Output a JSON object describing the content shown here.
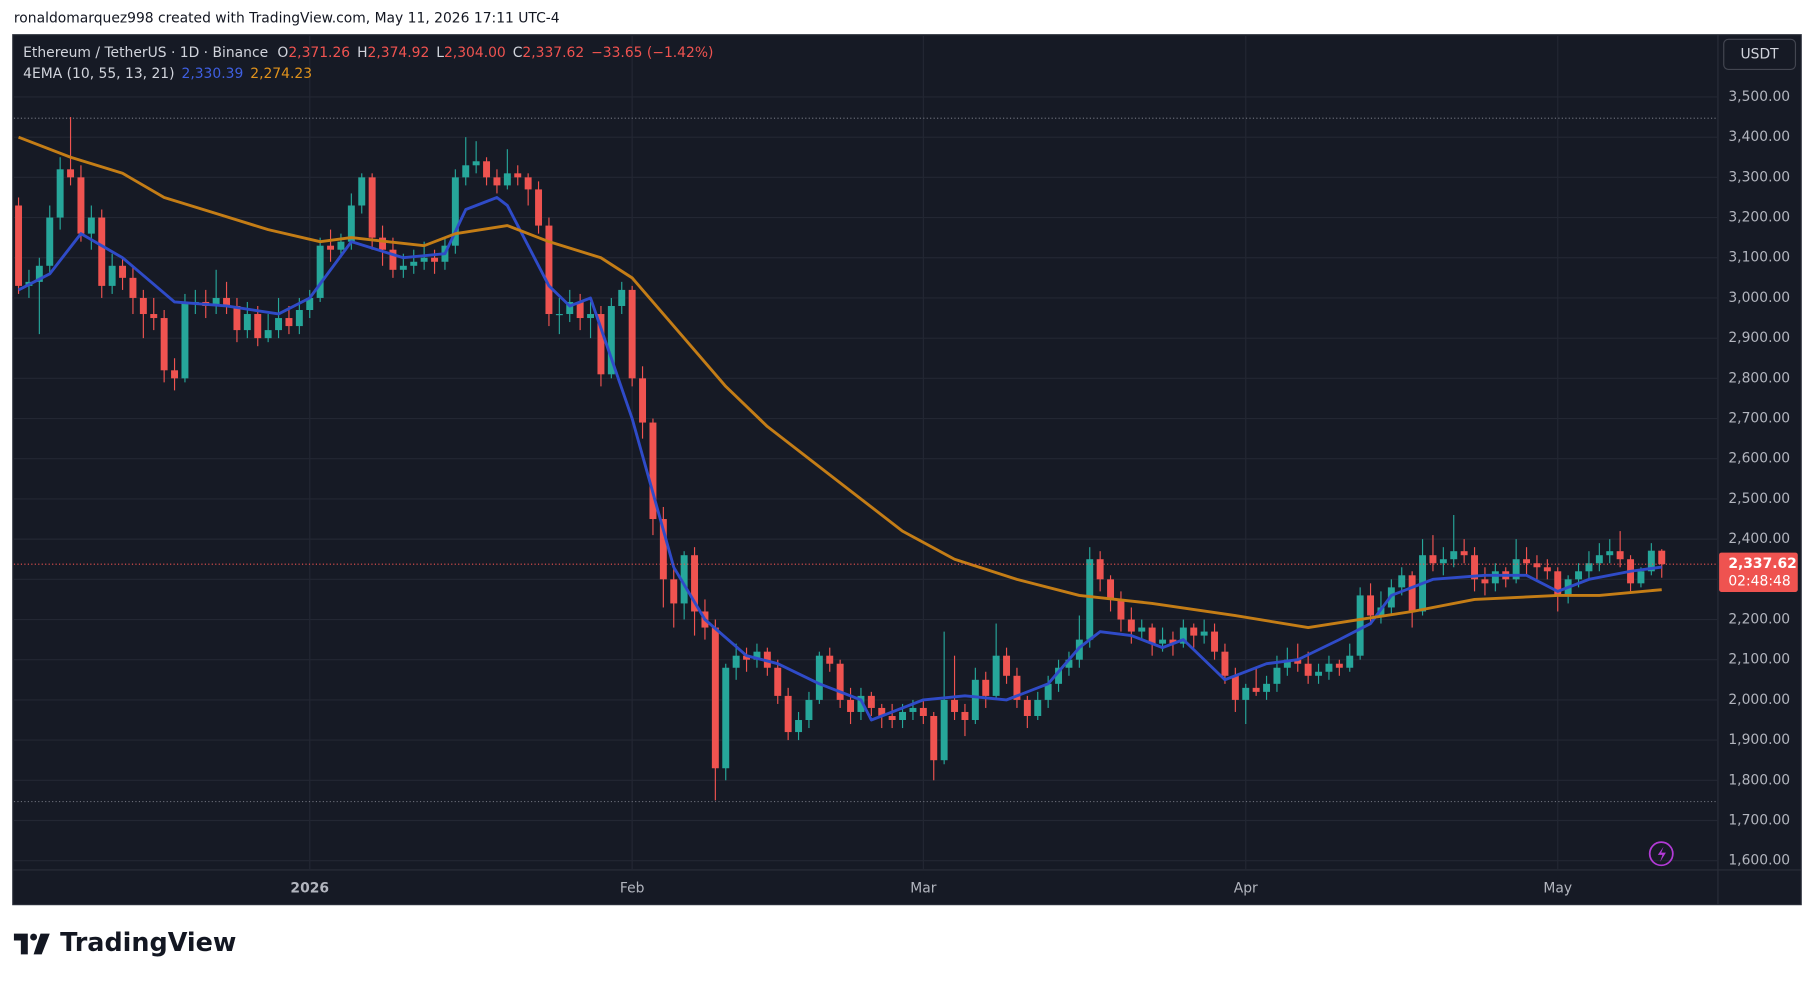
{
  "header": {
    "credit": "ronaldomarquez998 created with TradingView.com, May 11, 2026 17:11 UTC-4"
  },
  "footer": {
    "brand": "TradingView"
  },
  "chart_data": {
    "type": "candlestick",
    "symbol": "Ethereum / TetherUS · 1D · Binance",
    "ohlc_legend": [
      {
        "key": "O",
        "label": "2,371.26"
      },
      {
        "key": "H",
        "label": "2,374.92"
      },
      {
        "key": "L",
        "label": "2,304.00"
      },
      {
        "key": "C",
        "label": "2,337.62"
      }
    ],
    "change": "−33.65 (−1.42%)",
    "indicator": "4EMA (10, 55, 13, 21)",
    "indicator_values": [
      "2,330.39",
      "2,274.23"
    ],
    "currency": "USDT",
    "last_price_label": "2,337.62",
    "countdown": "02:48:48",
    "up_color": "#26a69a",
    "down_color": "#ef5350",
    "ylim": [
      1577,
      3652
    ],
    "yticks": [
      {
        "value": 1600,
        "label": "1,600.00"
      },
      {
        "value": 1700,
        "label": "1,700.00"
      },
      {
        "value": 1800,
        "label": "1,800.00"
      },
      {
        "value": 1900,
        "label": "1,900.00"
      },
      {
        "value": 2000,
        "label": "2,000.00"
      },
      {
        "value": 2100,
        "label": "2,100.00"
      },
      {
        "value": 2200,
        "label": "2,200.00"
      },
      {
        "value": 2300,
        "label": "2,300.00"
      },
      {
        "value": 2400,
        "label": "2,400.00"
      },
      {
        "value": 2500,
        "label": "2,500.00"
      },
      {
        "value": 2600,
        "label": "2,600.00"
      },
      {
        "value": 2700,
        "label": "2,700.00"
      },
      {
        "value": 2800,
        "label": "2,800.00"
      },
      {
        "value": 2900,
        "label": "2,900.00"
      },
      {
        "value": 3000,
        "label": "3,000.00"
      },
      {
        "value": 3100,
        "label": "3,100.00"
      },
      {
        "value": 3200,
        "label": "3,200.00"
      },
      {
        "value": 3300,
        "label": "3,300.00"
      },
      {
        "value": 3400,
        "label": "3,400.00"
      },
      {
        "value": 3500,
        "label": "3,500.00"
      }
    ],
    "xticks": [
      {
        "value": 28,
        "label": "2026"
      },
      {
        "value": 59,
        "label": "Feb"
      },
      {
        "value": 87,
        "label": "Mar"
      },
      {
        "value": 118,
        "label": "Apr"
      },
      {
        "value": 148,
        "label": "May"
      }
    ],
    "grid": true,
    "hl_lines": [
      3447,
      1747
    ],
    "ohlc": [
      [
        3230,
        3250,
        3010,
        3030
      ],
      [
        3030,
        3070,
        3000,
        3040
      ],
      [
        3040,
        3100,
        2910,
        3080
      ],
      [
        3080,
        3230,
        3060,
        3200
      ],
      [
        3200,
        3350,
        3170,
        3320
      ],
      [
        3320,
        3450,
        3280,
        3300
      ],
      [
        3300,
        3330,
        3140,
        3160
      ],
      [
        3160,
        3230,
        3120,
        3200
      ],
      [
        3200,
        3220,
        3000,
        3030
      ],
      [
        3030,
        3110,
        3010,
        3080
      ],
      [
        3080,
        3100,
        3020,
        3050
      ],
      [
        3050,
        3080,
        2960,
        3000
      ],
      [
        3000,
        3020,
        2900,
        2960
      ],
      [
        2960,
        3000,
        2920,
        2950
      ],
      [
        2950,
        2970,
        2790,
        2820
      ],
      [
        2820,
        2850,
        2770,
        2800
      ],
      [
        2800,
        3010,
        2790,
        2990
      ],
      [
        2990,
        3020,
        2960,
        2990
      ],
      [
        2990,
        3020,
        2950,
        2980
      ],
      [
        2980,
        3070,
        2960,
        3000
      ],
      [
        3000,
        3040,
        2960,
        2980
      ],
      [
        2980,
        3000,
        2890,
        2920
      ],
      [
        2920,
        2990,
        2900,
        2960
      ],
      [
        2960,
        2980,
        2880,
        2900
      ],
      [
        2900,
        2960,
        2890,
        2920
      ],
      [
        2920,
        3000,
        2900,
        2950
      ],
      [
        2950,
        2980,
        2910,
        2930
      ],
      [
        2930,
        3000,
        2910,
        2970
      ],
      [
        2970,
        3020,
        2950,
        3000
      ],
      [
        3000,
        3150,
        2990,
        3130
      ],
      [
        3130,
        3170,
        3090,
        3120
      ],
      [
        3120,
        3160,
        3100,
        3140
      ],
      [
        3140,
        3260,
        3120,
        3230
      ],
      [
        3230,
        3310,
        3210,
        3300
      ],
      [
        3300,
        3310,
        3120,
        3150
      ],
      [
        3150,
        3180,
        3080,
        3120
      ],
      [
        3120,
        3150,
        3050,
        3070
      ],
      [
        3070,
        3110,
        3050,
        3080
      ],
      [
        3080,
        3120,
        3060,
        3090
      ],
      [
        3090,
        3140,
        3070,
        3100
      ],
      [
        3100,
        3120,
        3060,
        3090
      ],
      [
        3090,
        3150,
        3070,
        3130
      ],
      [
        3130,
        3320,
        3110,
        3300
      ],
      [
        3300,
        3400,
        3280,
        3330
      ],
      [
        3330,
        3390,
        3310,
        3340
      ],
      [
        3340,
        3350,
        3280,
        3300
      ],
      [
        3300,
        3320,
        3260,
        3280
      ],
      [
        3280,
        3370,
        3270,
        3310
      ],
      [
        3310,
        3330,
        3280,
        3300
      ],
      [
        3300,
        3310,
        3230,
        3270
      ],
      [
        3270,
        3290,
        3160,
        3180
      ],
      [
        3180,
        3200,
        2930,
        2960
      ],
      [
        2960,
        3000,
        2910,
        2960
      ],
      [
        2960,
        3020,
        2940,
        2990
      ],
      [
        2990,
        3010,
        2920,
        2950
      ],
      [
        2950,
        2990,
        2900,
        2960
      ],
      [
        2960,
        2980,
        2780,
        2810
      ],
      [
        2810,
        3000,
        2800,
        2980
      ],
      [
        2980,
        3040,
        2960,
        3020
      ],
      [
        3020,
        3030,
        2780,
        2800
      ],
      [
        2800,
        2830,
        2650,
        2690
      ],
      [
        2690,
        2700,
        2410,
        2450
      ],
      [
        2450,
        2480,
        2230,
        2300
      ],
      [
        2300,
        2330,
        2180,
        2240
      ],
      [
        2240,
        2370,
        2200,
        2360
      ],
      [
        2360,
        2380,
        2160,
        2220
      ],
      [
        2220,
        2250,
        2150,
        2180
      ],
      [
        2180,
        2200,
        1750,
        1830
      ],
      [
        1830,
        2090,
        1800,
        2080
      ],
      [
        2080,
        2140,
        2050,
        2110
      ],
      [
        2110,
        2130,
        2070,
        2100
      ],
      [
        2100,
        2140,
        2080,
        2120
      ],
      [
        2120,
        2130,
        2060,
        2080
      ],
      [
        2080,
        2100,
        1990,
        2010
      ],
      [
        2010,
        2030,
        1900,
        1920
      ],
      [
        1920,
        1970,
        1900,
        1950
      ],
      [
        1950,
        2020,
        1930,
        2000
      ],
      [
        2000,
        2120,
        1990,
        2110
      ],
      [
        2110,
        2130,
        2070,
        2090
      ],
      [
        2090,
        2100,
        1980,
        2000
      ],
      [
        2000,
        2030,
        1940,
        1970
      ],
      [
        1970,
        2030,
        1950,
        2010
      ],
      [
        2010,
        2020,
        1960,
        1980
      ],
      [
        1980,
        1990,
        1930,
        1960
      ],
      [
        1960,
        1990,
        1930,
        1950
      ],
      [
        1950,
        1990,
        1930,
        1970
      ],
      [
        1970,
        2000,
        1950,
        1980
      ],
      [
        1980,
        2000,
        1940,
        1960
      ],
      [
        1960,
        1970,
        1800,
        1850
      ],
      [
        1850,
        2170,
        1840,
        2000
      ],
      [
        2000,
        2110,
        1950,
        1970
      ],
      [
        1970,
        1990,
        1910,
        1950
      ],
      [
        1950,
        2080,
        1940,
        2050
      ],
      [
        2050,
        2070,
        1980,
        2010
      ],
      [
        2010,
        2190,
        2000,
        2110
      ],
      [
        2110,
        2130,
        2040,
        2060
      ],
      [
        2060,
        2080,
        1980,
        2000
      ],
      [
        2000,
        2010,
        1930,
        1960
      ],
      [
        1960,
        2020,
        1950,
        2000
      ],
      [
        2000,
        2060,
        1980,
        2040
      ],
      [
        2040,
        2100,
        2020,
        2080
      ],
      [
        2080,
        2120,
        2060,
        2100
      ],
      [
        2100,
        2210,
        2080,
        2150
      ],
      [
        2150,
        2380,
        2130,
        2350
      ],
      [
        2350,
        2370,
        2270,
        2300
      ],
      [
        2300,
        2310,
        2220,
        2250
      ],
      [
        2250,
        2270,
        2170,
        2200
      ],
      [
        2200,
        2230,
        2140,
        2170
      ],
      [
        2170,
        2200,
        2150,
        2180
      ],
      [
        2180,
        2190,
        2110,
        2140
      ],
      [
        2140,
        2180,
        2120,
        2150
      ],
      [
        2150,
        2170,
        2110,
        2140
      ],
      [
        2140,
        2200,
        2130,
        2180
      ],
      [
        2180,
        2190,
        2130,
        2160
      ],
      [
        2160,
        2200,
        2140,
        2170
      ],
      [
        2170,
        2190,
        2100,
        2120
      ],
      [
        2120,
        2140,
        2040,
        2060
      ],
      [
        2060,
        2080,
        1970,
        2000
      ],
      [
        2000,
        2040,
        1940,
        2030
      ],
      [
        2030,
        2080,
        2010,
        2020
      ],
      [
        2020,
        2060,
        2000,
        2040
      ],
      [
        2040,
        2110,
        2020,
        2080
      ],
      [
        2080,
        2130,
        2060,
        2100
      ],
      [
        2100,
        2140,
        2070,
        2090
      ],
      [
        2090,
        2120,
        2040,
        2060
      ],
      [
        2060,
        2090,
        2040,
        2070
      ],
      [
        2070,
        2110,
        2050,
        2090
      ],
      [
        2090,
        2100,
        2060,
        2080
      ],
      [
        2080,
        2140,
        2070,
        2110
      ],
      [
        2110,
        2280,
        2100,
        2260
      ],
      [
        2260,
        2290,
        2190,
        2210
      ],
      [
        2210,
        2270,
        2190,
        2230
      ],
      [
        2230,
        2300,
        2210,
        2280
      ],
      [
        2280,
        2330,
        2260,
        2310
      ],
      [
        2310,
        2320,
        2180,
        2220
      ],
      [
        2220,
        2400,
        2210,
        2360
      ],
      [
        2360,
        2410,
        2320,
        2340
      ],
      [
        2340,
        2380,
        2310,
        2350
      ],
      [
        2350,
        2460,
        2330,
        2370
      ],
      [
        2370,
        2400,
        2340,
        2360
      ],
      [
        2360,
        2380,
        2270,
        2300
      ],
      [
        2300,
        2330,
        2260,
        2290
      ],
      [
        2290,
        2340,
        2270,
        2320
      ],
      [
        2320,
        2330,
        2280,
        2300
      ],
      [
        2300,
        2400,
        2290,
        2350
      ],
      [
        2350,
        2380,
        2310,
        2340
      ],
      [
        2340,
        2360,
        2300,
        2330
      ],
      [
        2330,
        2350,
        2300,
        2320
      ],
      [
        2320,
        2330,
        2220,
        2260
      ],
      [
        2260,
        2310,
        2240,
        2300
      ],
      [
        2300,
        2340,
        2280,
        2320
      ],
      [
        2320,
        2370,
        2300,
        2340
      ],
      [
        2340,
        2390,
        2320,
        2360
      ],
      [
        2360,
        2400,
        2340,
        2370
      ],
      [
        2370,
        2420,
        2330,
        2350
      ],
      [
        2350,
        2360,
        2270,
        2290
      ],
      [
        2290,
        2330,
        2280,
        2320
      ],
      [
        2320,
        2390,
        2310,
        2371.26
      ],
      [
        2371.26,
        2374.92,
        2304,
        2337.62
      ]
    ],
    "series": [
      {
        "color": "#2f4bc8",
        "x": [
          0,
          3,
          6,
          10,
          15,
          20,
          25,
          28,
          32,
          37,
          41,
          43,
          46,
          47,
          51,
          53,
          55,
          59,
          63,
          66,
          70,
          73,
          77,
          81,
          82,
          87,
          91,
          95,
          99,
          102,
          104,
          107,
          110,
          112,
          114,
          116,
          120,
          123,
          127,
          130,
          132,
          136,
          141,
          145,
          148,
          151,
          155,
          158
        ],
        "values": [
          3020,
          3060,
          3160,
          3100,
          2990,
          2980,
          2960,
          3000,
          3140,
          3100,
          3110,
          3220,
          3250,
          3230,
          3030,
          2980,
          3000,
          2700,
          2330,
          2200,
          2110,
          2090,
          2040,
          2000,
          1950,
          2000,
          2010,
          2000,
          2040,
          2130,
          2170,
          2160,
          2130,
          2150,
          2100,
          2050,
          2090,
          2100,
          2150,
          2190,
          2260,
          2300,
          2310,
          2310,
          2270,
          2300,
          2320,
          2330.39
        ]
      },
      {
        "color": "#c47d16",
        "x": [
          0,
          5,
          10,
          14,
          19,
          24,
          29,
          32,
          39,
          42,
          47,
          51,
          56,
          59,
          64,
          68,
          72,
          79,
          85,
          90,
          96,
          102,
          109,
          117,
          124,
          129,
          134,
          140,
          148,
          152,
          158
        ],
        "values": [
          3400,
          3350,
          3310,
          3250,
          3210,
          3170,
          3140,
          3150,
          3130,
          3160,
          3180,
          3140,
          3100,
          3050,
          2900,
          2780,
          2680,
          2540,
          2420,
          2350,
          2300,
          2260,
          2240,
          2210,
          2180,
          2200,
          2220,
          2250,
          2260,
          2260,
          2274.23
        ]
      }
    ]
  }
}
